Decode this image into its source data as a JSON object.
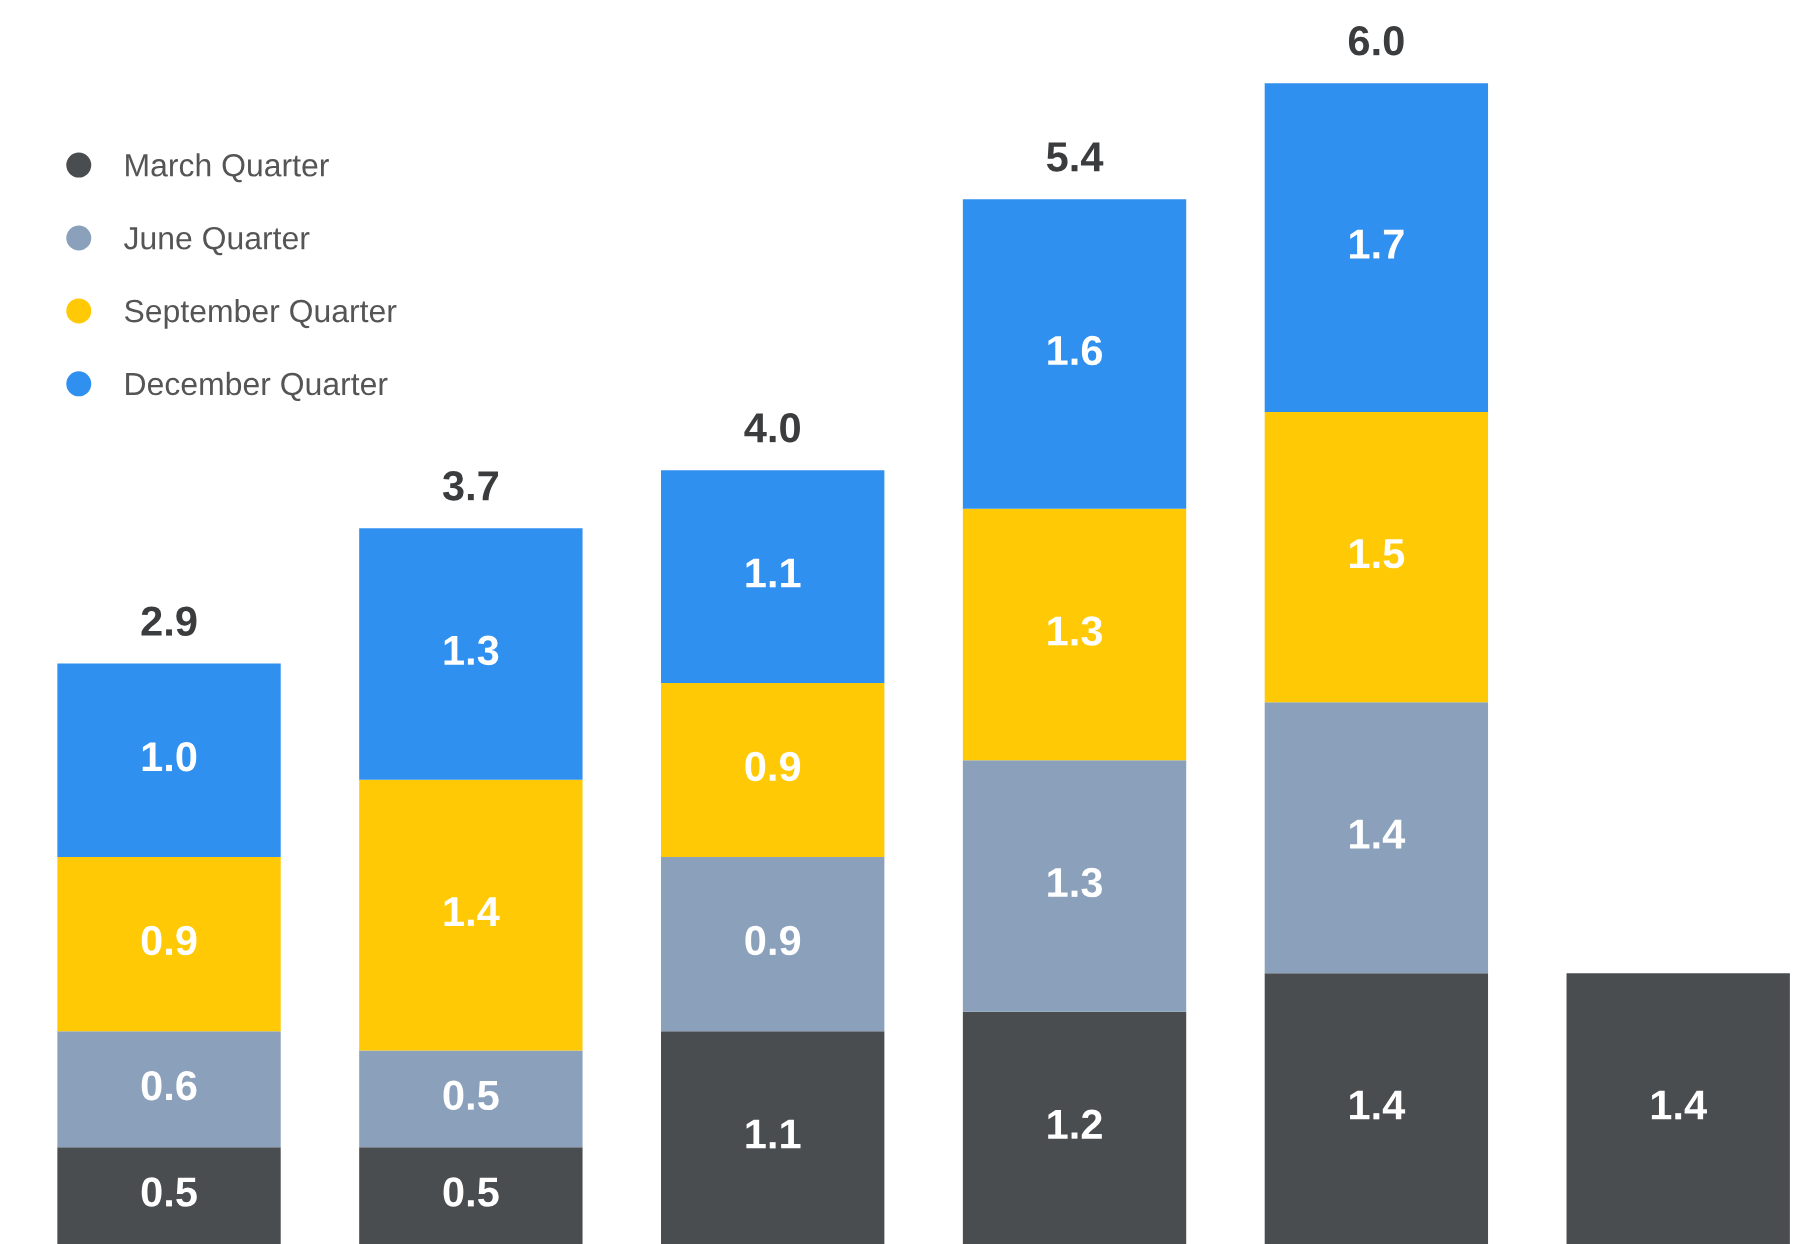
{
  "chart_data": {
    "type": "bar",
    "stacked": true,
    "grid": false,
    "legend": "top left",
    "marker": "circle",
    "categories": [
      null,
      null,
      null,
      null,
      null,
      null
    ],
    "ylim": [
      0,
      6.43
    ],
    "series": [
      {
        "name": "March Quarter",
        "color": "#4a4d50",
        "values": [
          0.5,
          0.5,
          1.1,
          1.2,
          1.4,
          1.4
        ],
        "value_labels": [
          "0.5",
          "0.5",
          "1.1",
          "1.2",
          "1.4",
          "1.4"
        ]
      },
      {
        "name": "June Quarter",
        "color": "#8aa0bb",
        "values": [
          0.6,
          0.5,
          0.9,
          1.3,
          1.4,
          null
        ],
        "value_labels": [
          "0.6",
          "0.5",
          "0.9",
          "1.3",
          "1.4",
          null
        ]
      },
      {
        "name": "September Quarter",
        "color": "#ffc905",
        "values": [
          0.9,
          1.4,
          0.9,
          1.3,
          1.5,
          null
        ],
        "value_labels": [
          "0.9",
          "1.4",
          "0.9",
          "1.3",
          "1.5",
          null
        ]
      },
      {
        "name": "December Quarter",
        "color": "#2f90f0",
        "values": [
          1.0,
          1.3,
          1.1,
          1.6,
          1.7,
          null
        ],
        "value_labels": [
          "1.0",
          "1.3",
          "1.1",
          "1.6",
          "1.7",
          null
        ]
      }
    ],
    "totals": [
      "2.9",
      "3.7",
      "4.0",
      "5.4",
      "6.0",
      null
    ]
  }
}
